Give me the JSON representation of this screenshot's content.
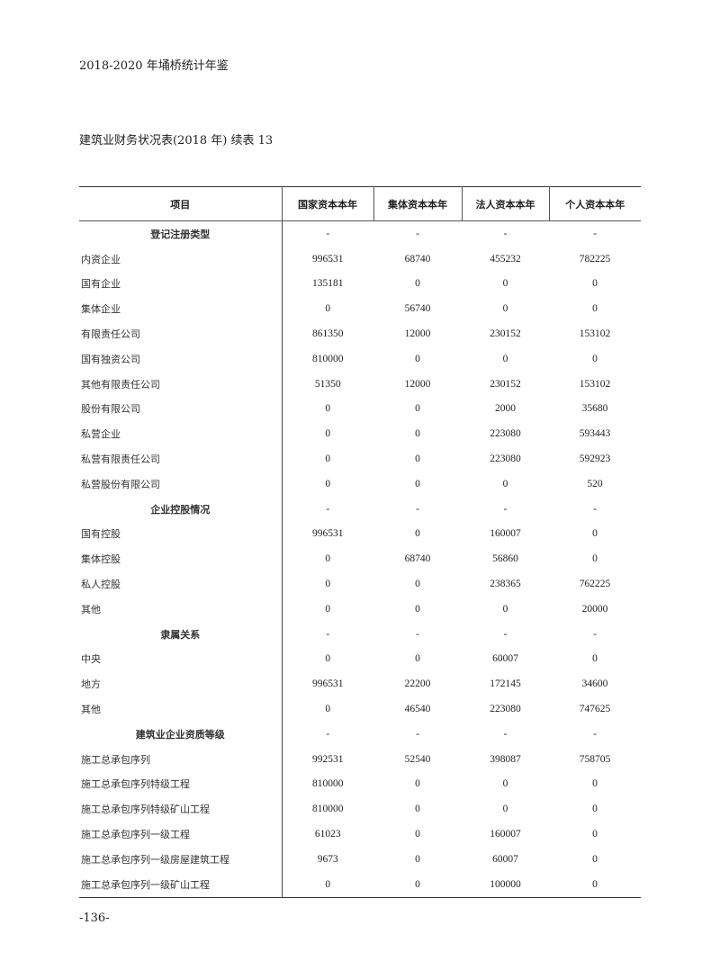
{
  "running_head": "2018-2020 年埇桥统计年鉴",
  "table_title": "建筑业财务状况表(2018 年)  续表 13",
  "page_number": "-136-",
  "table": {
    "columns": [
      "项目",
      "国家资本本年",
      "集体资本本年",
      "法人资本本年",
      "个人资本本年"
    ],
    "rows": [
      {
        "label": "登记注册类型",
        "section": true,
        "values": [
          "-",
          "-",
          "-",
          "-"
        ]
      },
      {
        "label": "内资企业",
        "values": [
          "996531",
          "68740",
          "455232",
          "782225"
        ]
      },
      {
        "label": "国有企业",
        "values": [
          "135181",
          "0",
          "0",
          "0"
        ]
      },
      {
        "label": "集体企业",
        "values": [
          "0",
          "56740",
          "0",
          "0"
        ]
      },
      {
        "label": "有限责任公司",
        "values": [
          "861350",
          "12000",
          "230152",
          "153102"
        ]
      },
      {
        "label": "国有独资公司",
        "values": [
          "810000",
          "0",
          "0",
          "0"
        ]
      },
      {
        "label": "其他有限责任公司",
        "values": [
          "51350",
          "12000",
          "230152",
          "153102"
        ]
      },
      {
        "label": "股份有限公司",
        "values": [
          "0",
          "0",
          "2000",
          "35680"
        ]
      },
      {
        "label": "私营企业",
        "values": [
          "0",
          "0",
          "223080",
          "593443"
        ]
      },
      {
        "label": "私营有限责任公司",
        "values": [
          "0",
          "0",
          "223080",
          "592923"
        ]
      },
      {
        "label": "私营股份有限公司",
        "values": [
          "0",
          "0",
          "0",
          "520"
        ]
      },
      {
        "label": "企业控股情况",
        "section": true,
        "values": [
          "-",
          "-",
          "-",
          "-"
        ]
      },
      {
        "label": "国有控股",
        "values": [
          "996531",
          "0",
          "160007",
          "0"
        ]
      },
      {
        "label": "集体控股",
        "values": [
          "0",
          "68740",
          "56860",
          "0"
        ]
      },
      {
        "label": "私人控股",
        "values": [
          "0",
          "0",
          "238365",
          "762225"
        ]
      },
      {
        "label": "其他",
        "values": [
          "0",
          "0",
          "0",
          "20000"
        ]
      },
      {
        "label": "隶属关系",
        "section": true,
        "values": [
          "-",
          "-",
          "-",
          "-"
        ]
      },
      {
        "label": "中央",
        "values": [
          "0",
          "0",
          "60007",
          "0"
        ]
      },
      {
        "label": "地方",
        "values": [
          "996531",
          "22200",
          "172145",
          "34600"
        ]
      },
      {
        "label": "其他",
        "values": [
          "0",
          "46540",
          "223080",
          "747625"
        ]
      },
      {
        "label": "建筑业企业资质等级",
        "section": true,
        "values": [
          "-",
          "-",
          "-",
          "-"
        ]
      },
      {
        "label": "施工总承包序列",
        "values": [
          "992531",
          "52540",
          "398087",
          "758705"
        ]
      },
      {
        "label": "施工总承包序列特级工程",
        "values": [
          "810000",
          "0",
          "0",
          "0"
        ]
      },
      {
        "label": "施工总承包序列特级矿山工程",
        "values": [
          "810000",
          "0",
          "0",
          "0"
        ]
      },
      {
        "label": "施工总承包序列一级工程",
        "values": [
          "61023",
          "0",
          "160007",
          "0"
        ]
      },
      {
        "label": "施工总承包序列一级房屋建筑工程",
        "values": [
          "9673",
          "0",
          "60007",
          "0"
        ]
      },
      {
        "label": "施工总承包序列一级矿山工程",
        "values": [
          "0",
          "0",
          "100000",
          "0"
        ]
      }
    ]
  }
}
